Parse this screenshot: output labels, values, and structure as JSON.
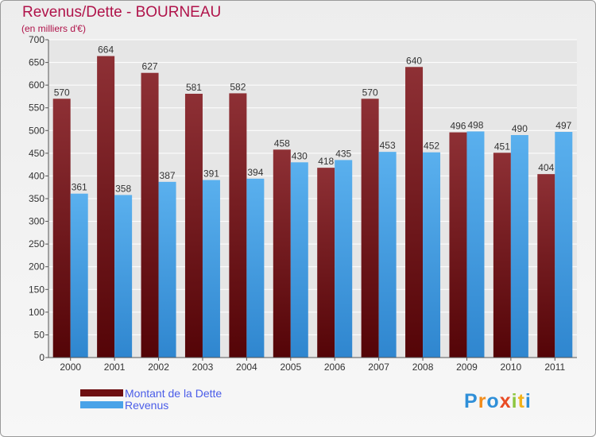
{
  "header": {
    "title": "Revenus/Dette - BOURNEAU",
    "subtitle": "(en milliers d'€)"
  },
  "chart_data": {
    "type": "bar",
    "title": "Revenus/Dette - BOURNEAU",
    "subtitle": "(en milliers d'€)",
    "categories": [
      "2000",
      "2001",
      "2002",
      "2003",
      "2004",
      "2005",
      "2006",
      "2007",
      "2008",
      "2009",
      "2010",
      "2011"
    ],
    "series": [
      {
        "name": "Montant de la Dette",
        "values": [
          570,
          664,
          627,
          581,
          582,
          458,
          418,
          570,
          640,
          496,
          451,
          404
        ],
        "color": "#7b1a1d"
      },
      {
        "name": "Revenus",
        "values": [
          361,
          358,
          387,
          391,
          394,
          430,
          435,
          453,
          452,
          498,
          490,
          497
        ],
        "color": "#4aa3e8"
      }
    ],
    "ylim": [
      0,
      700
    ],
    "yticks": [
      0,
      50,
      100,
      150,
      200,
      250,
      300,
      350,
      400,
      450,
      500,
      550,
      600,
      650,
      700
    ],
    "grid": true,
    "legend_position": "bottom-left"
  },
  "legend": {
    "items": [
      {
        "label": "Montant de la Dette",
        "color": "#6e0f12"
      },
      {
        "label": "Revenus",
        "color": "#4aa3e8"
      }
    ]
  },
  "logo": {
    "letters": [
      {
        "ch": "P",
        "color": "#2f8fd8"
      },
      {
        "ch": "r",
        "color": "#f28c1a"
      },
      {
        "ch": "o",
        "color": "#2f8fd8"
      },
      {
        "ch": "x",
        "color": "#e94b24"
      },
      {
        "ch": "i",
        "color": "#8cc63f"
      },
      {
        "ch": "t",
        "color": "#f2b21a"
      },
      {
        "ch": "i",
        "color": "#2f8fd8"
      }
    ]
  }
}
